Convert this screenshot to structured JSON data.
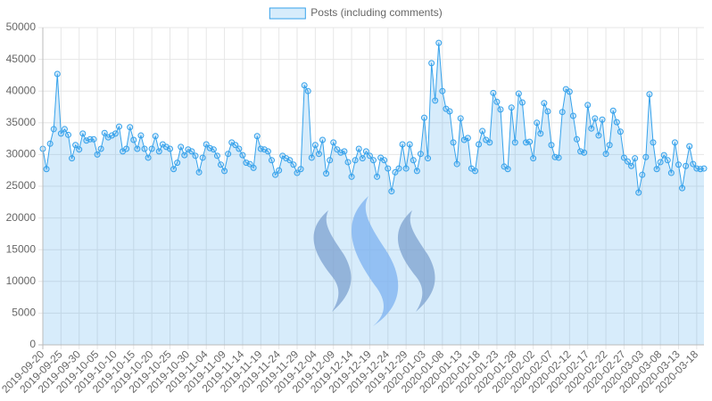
{
  "chart_data": {
    "type": "line",
    "categories": [
      "2019-09-20",
      null,
      null,
      null,
      null,
      "2019-09-25",
      null,
      null,
      null,
      null,
      "2019-09-30",
      null,
      null,
      null,
      null,
      "2019-10-05",
      null,
      null,
      null,
      null,
      "2019-10-10",
      null,
      null,
      null,
      null,
      "2019-10-15",
      null,
      null,
      null,
      null,
      "2019-10-20",
      null,
      null,
      null,
      null,
      "2019-10-25",
      null,
      null,
      null,
      null,
      "2019-10-30",
      null,
      null,
      null,
      null,
      "2019-11-04",
      null,
      null,
      null,
      null,
      "2019-11-09",
      null,
      null,
      null,
      null,
      "2019-11-14",
      null,
      null,
      null,
      null,
      "2019-11-19",
      null,
      null,
      null,
      null,
      "2019-11-24",
      null,
      null,
      null,
      null,
      "2019-11-29",
      null,
      null,
      null,
      null,
      "2019-12-04",
      null,
      null,
      null,
      null,
      "2019-12-09",
      null,
      null,
      null,
      null,
      "2019-12-14",
      null,
      null,
      null,
      null,
      "2019-12-19",
      null,
      null,
      null,
      null,
      "2019-12-24",
      null,
      null,
      null,
      null,
      "2019-12-29",
      null,
      null,
      null,
      null,
      "2020-01-03",
      null,
      null,
      null,
      null,
      "2020-01-08",
      null,
      null,
      null,
      null,
      "2020-01-13",
      null,
      null,
      null,
      null,
      "2020-01-18",
      null,
      null,
      null,
      null,
      "2020-01-23",
      null,
      null,
      null,
      null,
      "2020-01-28",
      null,
      null,
      null,
      null,
      "2020-02-02",
      null,
      null,
      null,
      null,
      "2020-02-07",
      null,
      null,
      null,
      null,
      "2020-02-12",
      null,
      null,
      null,
      null,
      "2020-02-17",
      null,
      null,
      null,
      null,
      "2020-02-22",
      null,
      null,
      null,
      null,
      "2020-02-27",
      null,
      null,
      null,
      null,
      "2020-03-03",
      null,
      null,
      null,
      null,
      "2020-03-08",
      null,
      null,
      null,
      null,
      "2020-03-13",
      null,
      null,
      null,
      null,
      "2020-03-18",
      null,
      null
    ],
    "series": [
      {
        "name": "Posts (including comments)",
        "color": "#36a2eb",
        "fill": "rgba(54,162,235,0.2)",
        "values": [
          30900,
          27700,
          31700,
          34000,
          42700,
          33300,
          34000,
          33100,
          29400,
          31500,
          30800,
          33300,
          32200,
          32400,
          32400,
          30000,
          30900,
          33400,
          32700,
          33000,
          33300,
          34400,
          30500,
          30900,
          34300,
          32300,
          30900,
          33000,
          30900,
          29500,
          30900,
          32900,
          30500,
          31600,
          31200,
          30900,
          27700,
          28700,
          31200,
          29900,
          30800,
          30500,
          29800,
          27200,
          29500,
          31600,
          31000,
          30800,
          29800,
          28400,
          27400,
          30100,
          31900,
          31500,
          30900,
          29900,
          28700,
          28500,
          27900,
          32900,
          30900,
          30800,
          30500,
          29100,
          26800,
          27500,
          29800,
          29400,
          29100,
          28400,
          27100,
          27700,
          40900,
          40000,
          29500,
          31500,
          30100,
          32300,
          27000,
          29100,
          31900,
          30800,
          30300,
          30500,
          28800,
          26500,
          29100,
          30900,
          29400,
          30500,
          29800,
          29100,
          26500,
          29500,
          29100,
          27800,
          24200,
          27200,
          27800,
          31600,
          27800,
          31600,
          29100,
          27400,
          30100,
          35800,
          29400,
          44400,
          38500,
          47600,
          40000,
          37200,
          36800,
          31900,
          28500,
          35700,
          32300,
          32600,
          27800,
          27400,
          31600,
          33700,
          32300,
          31900,
          39700,
          38300,
          37100,
          28100,
          27700,
          37400,
          31900,
          39600,
          38200,
          31900,
          32000,
          29400,
          35000,
          33300,
          38100,
          36800,
          31500,
          29600,
          29500,
          36700,
          40300,
          39900,
          36100,
          32400,
          30500,
          30300,
          37800,
          34100,
          35700,
          33000,
          35500,
          30100,
          31500,
          36900,
          35100,
          33600,
          29500,
          28900,
          28200,
          29400,
          24000,
          26800,
          29600,
          39500,
          31900,
          27700,
          28800,
          29900,
          29100,
          27100,
          31900,
          28400,
          24700,
          28200,
          31300,
          28500,
          27800,
          27700,
          27800
        ]
      }
    ],
    "ylim": [
      0,
      50000
    ],
    "yticks": [
      0,
      5000,
      10000,
      15000,
      20000,
      25000,
      30000,
      35000,
      40000,
      45000,
      50000
    ],
    "grid": true,
    "legend": "top"
  }
}
